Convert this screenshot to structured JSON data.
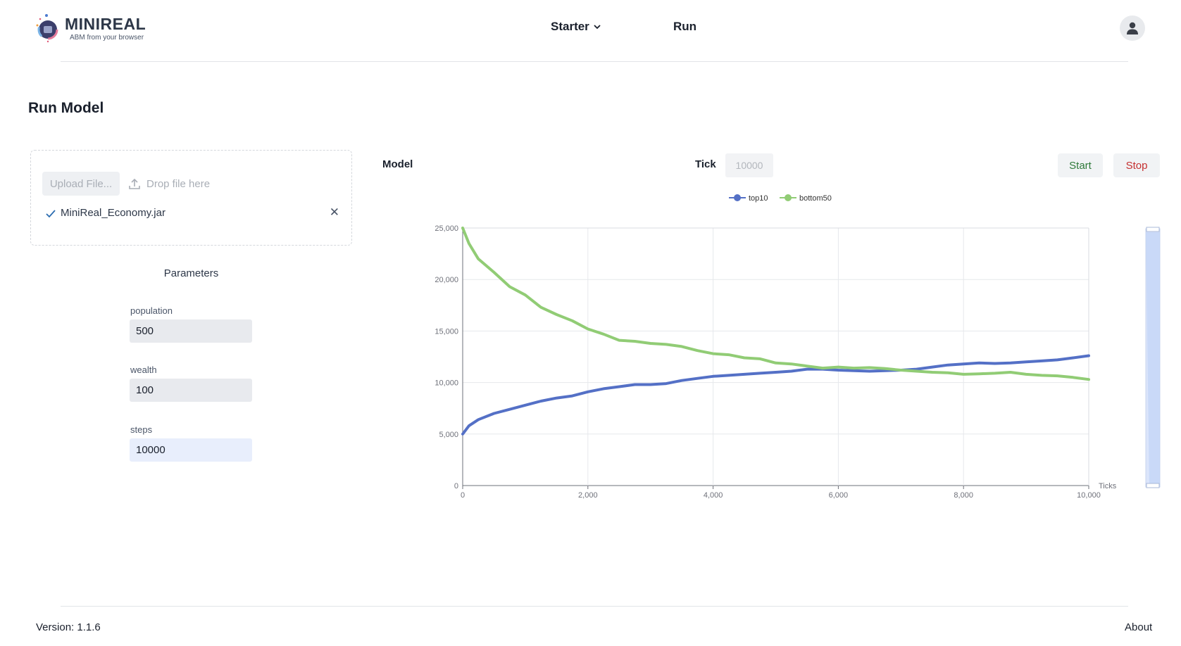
{
  "app": {
    "title": "MINIREAL",
    "subtitle": "ABM from your browser"
  },
  "nav": {
    "starter_label": "Starter",
    "run_label": "Run"
  },
  "page": {
    "title": "Run Model"
  },
  "upload": {
    "button_label": "Upload File...",
    "drop_hint": "Drop file here",
    "file_name": "MiniReal_Economy.jar"
  },
  "parameters": {
    "title": "Parameters",
    "items": [
      {
        "label": "population",
        "value": "500"
      },
      {
        "label": "wealth",
        "value": "100"
      },
      {
        "label": "steps",
        "value": "10000"
      }
    ]
  },
  "model": {
    "label": "Model",
    "tick_label": "Tick",
    "tick_placeholder": "10000",
    "start_label": "Start",
    "stop_label": "Stop"
  },
  "chart_data": {
    "type": "line",
    "xlabel": "Ticks",
    "ylabel": "",
    "xlim": [
      0,
      10000
    ],
    "ylim": [
      0,
      25000
    ],
    "x_ticks": [
      "0",
      "2,000",
      "4,000",
      "6,000",
      "8,000",
      "10,000"
    ],
    "y_ticks": [
      "0",
      "5,000",
      "10,000",
      "15,000",
      "20,000",
      "25,000"
    ],
    "grid": true,
    "legend_position": "top-center",
    "x": [
      0,
      100,
      250,
      500,
      750,
      1000,
      1250,
      1500,
      1750,
      2000,
      2250,
      2500,
      2750,
      3000,
      3250,
      3500,
      3750,
      4000,
      4250,
      4500,
      4750,
      5000,
      5250,
      5500,
      5750,
      6000,
      6250,
      6500,
      6750,
      7000,
      7250,
      7500,
      7750,
      8000,
      8250,
      8500,
      8750,
      9000,
      9250,
      9500,
      9750,
      10000
    ],
    "series": [
      {
        "name": "top10",
        "color": "#5470c6",
        "values": [
          5000,
          5800,
          6400,
          7000,
          7400,
          7800,
          8200,
          8500,
          8700,
          9100,
          9400,
          9600,
          9800,
          9800,
          9900,
          10200,
          10400,
          10600,
          10700,
          10800,
          10900,
          11000,
          11100,
          11300,
          11300,
          11200,
          11150,
          11100,
          11150,
          11200,
          11300,
          11500,
          11700,
          11800,
          11900,
          11850,
          11900,
          12000,
          12100,
          12200,
          12400,
          12600
        ]
      },
      {
        "name": "bottom50",
        "color": "#91cc75",
        "values": [
          25000,
          23500,
          22000,
          20700,
          19300,
          18500,
          17300,
          16600,
          16000,
          15200,
          14700,
          14100,
          14000,
          13800,
          13700,
          13500,
          13100,
          12800,
          12700,
          12400,
          12300,
          11900,
          11800,
          11600,
          11400,
          11500,
          11400,
          11450,
          11350,
          11200,
          11100,
          11000,
          10950,
          10800,
          10850,
          10900,
          11000,
          10800,
          10700,
          10650,
          10500,
          10300
        ]
      }
    ]
  },
  "footer": {
    "version": "Version: 1.1.6",
    "about": "About"
  }
}
